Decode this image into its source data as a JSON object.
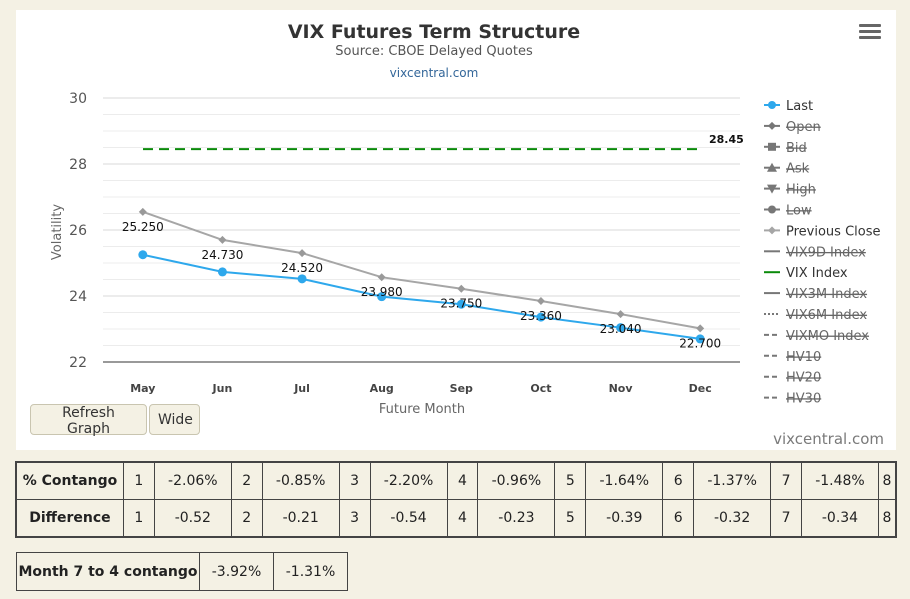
{
  "chart_data": {
    "type": "line",
    "title": "VIX Futures Term Structure",
    "subtitle": "Source: CBOE Delayed Quotes",
    "link": "vixcentral.com",
    "xlabel": "Future Month",
    "ylabel": "Volatility",
    "categories": [
      "May",
      "Jun",
      "Jul",
      "Aug",
      "Sep",
      "Oct",
      "Nov",
      "Dec"
    ],
    "ylim": [
      22,
      30
    ],
    "yticks": [
      22,
      24,
      26,
      28,
      30
    ],
    "series": [
      {
        "name": "Last",
        "values": [
          25.25,
          24.73,
          24.52,
          23.98,
          23.75,
          23.36,
          23.04,
          22.7
        ],
        "labels": [
          "25.250",
          "24.730",
          "24.520",
          "23.980",
          "23.750",
          "23.360",
          "23.040",
          "22.700"
        ],
        "color": "#2ea8ec",
        "visible": true
      },
      {
        "name": "Previous Close",
        "values": [
          26.55,
          25.7,
          25.3,
          24.57,
          24.22,
          23.85,
          23.45,
          23.02
        ],
        "color": "#a6a6a6",
        "visible": true
      },
      {
        "name": "VIX Index",
        "value": 28.45,
        "label": "28.45",
        "color": "#0a8a0a",
        "style": "dashed",
        "visible": true
      }
    ],
    "legend": [
      {
        "name": "Last",
        "symbol": "circle-line",
        "color": "#2ea8ec",
        "hidden": false
      },
      {
        "name": "Open",
        "symbol": "diamond-line",
        "color": "#666666",
        "hidden": true
      },
      {
        "name": "Bid",
        "symbol": "square-line",
        "color": "#666666",
        "hidden": true
      },
      {
        "name": "Ask",
        "symbol": "triangle-line",
        "color": "#666666",
        "hidden": true
      },
      {
        "name": "High",
        "symbol": "triangle-down-line",
        "color": "#666666",
        "hidden": true
      },
      {
        "name": "Low",
        "symbol": "circle-line",
        "color": "#666666",
        "hidden": true
      },
      {
        "name": "Previous Close",
        "symbol": "diamond-line",
        "color": "#a6a6a6",
        "hidden": false
      },
      {
        "name": "VIX9D Index",
        "symbol": "solid-line",
        "color": "#777777",
        "hidden": true
      },
      {
        "name": "VIX Index",
        "symbol": "solid-line",
        "color": "#0a8a0a",
        "hidden": false
      },
      {
        "name": "VIX3M Index",
        "symbol": "solid-line",
        "color": "#777777",
        "hidden": true
      },
      {
        "name": "VIX6M Index",
        "symbol": "dotted-line",
        "color": "#777777",
        "hidden": true
      },
      {
        "name": "VIXMO Index",
        "symbol": "dash-line",
        "color": "#777777",
        "hidden": true
      },
      {
        "name": "HV10",
        "symbol": "dash-line",
        "color": "#777777",
        "hidden": true
      },
      {
        "name": "HV20",
        "symbol": "dash-line",
        "color": "#777777",
        "hidden": true
      },
      {
        "name": "HV30",
        "symbol": "dash-line",
        "color": "#777777",
        "hidden": true
      }
    ],
    "legend_position": "right",
    "grid": true
  },
  "buttons": {
    "refresh": "Refresh Graph",
    "wide": "Wide"
  },
  "watermark": "vixcentral.com",
  "contango_table": {
    "rows": [
      {
        "header": "% Contango",
        "cells": [
          "1",
          "-2.06%",
          "2",
          "-0.85%",
          "3",
          "-2.20%",
          "4",
          "-0.96%",
          "5",
          "-1.64%",
          "6",
          "-1.37%",
          "7",
          "-1.48%",
          "8"
        ]
      },
      {
        "header": "Difference",
        "cells": [
          "1",
          "-0.52",
          "2",
          "-0.21",
          "3",
          "-0.54",
          "4",
          "-0.23",
          "5",
          "-0.39",
          "6",
          "-0.32",
          "7",
          "-0.34",
          "8"
        ]
      }
    ]
  },
  "summary_table": {
    "label": "Month 7 to 4 contango",
    "value1": "-3.92%",
    "value2": "-1.31%"
  },
  "colors": {
    "background": "#f4f1e4",
    "panel": "#ffffff"
  }
}
